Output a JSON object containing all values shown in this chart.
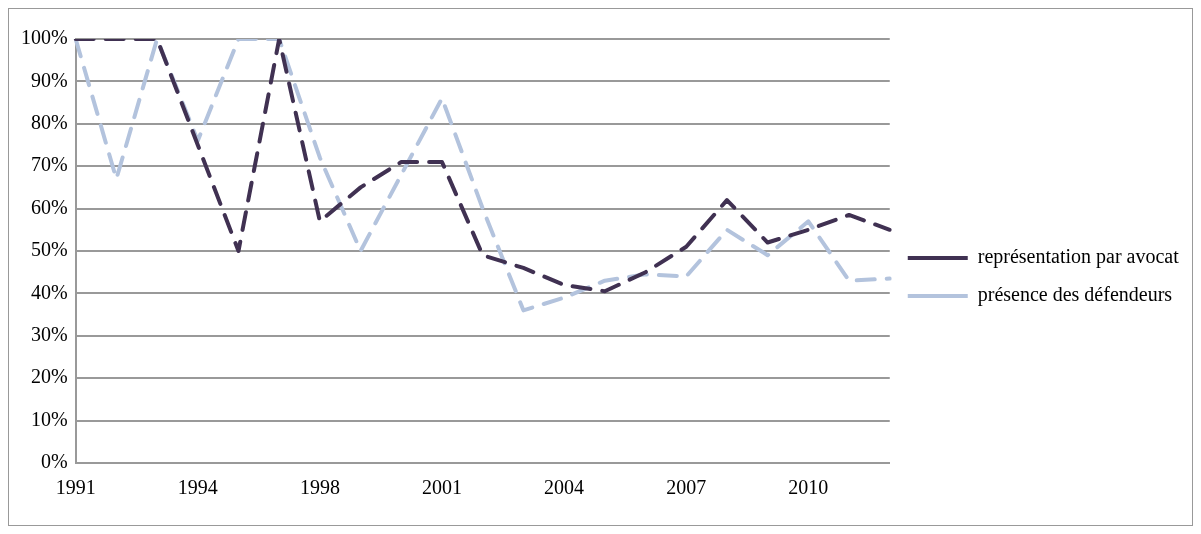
{
  "chart_data": {
    "type": "line",
    "categories": [
      "1991",
      null,
      null,
      "1994",
      null,
      null,
      "1998",
      null,
      null,
      "2001",
      null,
      null,
      "2004",
      null,
      null,
      "2007",
      null,
      null,
      "2010",
      null,
      null
    ],
    "series": [
      {
        "name": "représentation par avocat",
        "color": "#403152",
        "values": [
          100,
          100,
          100,
          75,
          50,
          100,
          57,
          65,
          71,
          71,
          49,
          46,
          42,
          40.5,
          45,
          51,
          62,
          52,
          55,
          58.5,
          55
        ]
      },
      {
        "name": "présence des défendeurs",
        "color": "#b3c3dd",
        "values": [
          100,
          67,
          100,
          76,
          100,
          100,
          72,
          50,
          68,
          86,
          60,
          36,
          39,
          43,
          44.5,
          44,
          55,
          49,
          57,
          43,
          43.5
        ]
      }
    ],
    "ylim": [
      0,
      100
    ],
    "yticks": [
      {
        "value": 0,
        "label": "0%"
      },
      {
        "value": 10,
        "label": "10%"
      },
      {
        "value": 20,
        "label": "20%"
      },
      {
        "value": 30,
        "label": "30%"
      },
      {
        "value": 40,
        "label": "40%"
      },
      {
        "value": 50,
        "label": "50%"
      },
      {
        "value": 60,
        "label": "60%"
      },
      {
        "value": 70,
        "label": "70%"
      },
      {
        "value": 80,
        "label": "80%"
      },
      {
        "value": 90,
        "label": "90%"
      },
      {
        "value": 100,
        "label": "100%"
      }
    ],
    "grid": "y",
    "legend": "right",
    "marker": "none",
    "line_style": "dashed"
  }
}
